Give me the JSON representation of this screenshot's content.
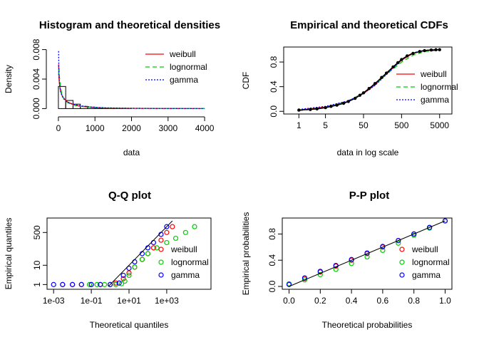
{
  "chart_data": [
    {
      "type": "histogram",
      "title": "Histogram and theoretical densities",
      "xlabel": "data",
      "ylabel": "Density",
      "xlim": [
        0,
        4000
      ],
      "ylim": [
        0,
        0.008
      ],
      "xticks": [
        "0",
        "1000",
        "2000",
        "3000",
        "4000"
      ],
      "xtick_values": [
        0,
        1000,
        2000,
        3000,
        4000
      ],
      "yticks": [
        "0.000",
        "0.004",
        "0.008"
      ],
      "ytick_values": [
        0,
        0.004,
        0.008
      ],
      "bins": [
        {
          "x0": 0,
          "x1": 200,
          "density": 0.003
        },
        {
          "x0": 200,
          "x1": 400,
          "density": 0.0011
        },
        {
          "x0": 400,
          "x1": 600,
          "density": 0.0006
        },
        {
          "x0": 600,
          "x1": 800,
          "density": 0.0003
        },
        {
          "x0": 800,
          "x1": 1000,
          "density": 0.0002
        },
        {
          "x0": 1000,
          "x1": 1200,
          "density": 0.00012
        },
        {
          "x0": 1200,
          "x1": 1400,
          "density": 8e-05
        },
        {
          "x0": 1400,
          "x1": 1600,
          "density": 5e-05
        },
        {
          "x0": 1600,
          "x1": 1800,
          "density": 3e-05
        },
        {
          "x0": 1800,
          "x1": 2000,
          "density": 2e-05
        }
      ],
      "series": [
        {
          "name": "weibull",
          "color": "#ff0000",
          "dash": "",
          "x": [
            5,
            15,
            30,
            60,
            100,
            150,
            250,
            400,
            600,
            900,
            1300,
            2000,
            3000,
            4000
          ],
          "y": [
            0.006,
            0.0042,
            0.0032,
            0.0024,
            0.0018,
            0.0014,
            0.0009,
            0.00055,
            0.00032,
            0.00016,
            8e-05,
            3e-05,
            1e-05,
            3e-06
          ]
        },
        {
          "name": "lognormal",
          "color": "#00cd00",
          "dash": "6,4",
          "x": [
            5,
            15,
            30,
            60,
            100,
            150,
            250,
            400,
            600,
            900,
            1300,
            2000,
            3000,
            4000
          ],
          "y": [
            0.0045,
            0.0055,
            0.0042,
            0.0028,
            0.0019,
            0.0013,
            0.0008,
            0.00048,
            0.0003,
            0.00018,
            0.0001,
            5e-05,
            2e-05,
            1e-05
          ]
        },
        {
          "name": "gamma",
          "color": "#0000ff",
          "dash": "2,2",
          "x": [
            5,
            15,
            30,
            60,
            100,
            150,
            250,
            400,
            600,
            900,
            1300,
            2000,
            3000,
            4000
          ],
          "y": [
            0.0078,
            0.0048,
            0.0033,
            0.0023,
            0.0017,
            0.0013,
            0.0009,
            0.0006,
            0.00038,
            0.0002,
            0.0001,
            4e-05,
            1e-05,
            3e-06
          ]
        }
      ],
      "legend_position": "top-right"
    },
    {
      "type": "line",
      "title": "Empirical and theoretical CDFs",
      "xlabel": "data in log scale",
      "ylabel": "CDF",
      "xscale": "log",
      "xlim": [
        0.6,
        7000
      ],
      "ylim": [
        0,
        1
      ],
      "xticks": [
        "1",
        "5",
        "50",
        "500",
        "5000"
      ],
      "xtick_values": [
        1,
        5,
        50,
        500,
        5000
      ],
      "yticks": [
        "0.0",
        "0.4",
        "0.8"
      ],
      "ytick_values": [
        0,
        0.4,
        0.8
      ],
      "empirical": {
        "x": [
          1,
          2,
          3,
          5,
          7,
          10,
          15,
          20,
          30,
          40,
          50,
          70,
          100,
          150,
          200,
          300,
          400,
          500,
          700,
          1000,
          1500,
          2000,
          3000,
          4000,
          5000
        ],
        "y": [
          0.02,
          0.03,
          0.04,
          0.06,
          0.08,
          0.1,
          0.13,
          0.16,
          0.21,
          0.26,
          0.3,
          0.37,
          0.45,
          0.55,
          0.62,
          0.72,
          0.79,
          0.84,
          0.9,
          0.94,
          0.97,
          0.985,
          0.995,
          1.0,
          1.0
        ]
      },
      "series": [
        {
          "name": "weibull",
          "color": "#ff0000",
          "dash": "",
          "x": [
            1,
            5,
            20,
            50,
            100,
            200,
            500,
            1000,
            2000,
            5000
          ],
          "y": [
            0.02,
            0.07,
            0.16,
            0.29,
            0.43,
            0.61,
            0.83,
            0.94,
            0.99,
            1.0
          ]
        },
        {
          "name": "lognormal",
          "color": "#00cd00",
          "dash": "6,4",
          "x": [
            1,
            5,
            20,
            50,
            100,
            200,
            500,
            1000,
            2000,
            5000
          ],
          "y": [
            0.01,
            0.06,
            0.17,
            0.3,
            0.44,
            0.6,
            0.8,
            0.91,
            0.97,
            0.995
          ]
        },
        {
          "name": "gamma",
          "color": "#0000ff",
          "dash": "2,2",
          "x": [
            1,
            5,
            20,
            50,
            100,
            200,
            500,
            1000,
            2000,
            5000
          ],
          "y": [
            0.03,
            0.08,
            0.17,
            0.29,
            0.42,
            0.6,
            0.84,
            0.95,
            0.99,
            1.0
          ]
        }
      ],
      "legend_position": "bottom-right"
    },
    {
      "type": "scatter",
      "title": "Q-Q plot",
      "xlabel": "Theoretical quantiles",
      "ylabel": "Empirical quantiles",
      "xscale": "log",
      "yscale": "log",
      "xlim": [
        0.001,
        100000
      ],
      "ylim": [
        0.8,
        2000
      ],
      "xticks": [
        "1e-03",
        "1e-01",
        "1e+01",
        "1e+03"
      ],
      "xtick_values": [
        0.001,
        0.1,
        10,
        1000
      ],
      "yticks": [
        "1",
        "10",
        "500"
      ],
      "ytick_values": [
        1,
        10,
        500
      ],
      "series": [
        {
          "name": "weibull",
          "color": "#ff0000",
          "marker": "circle",
          "x": [
            0.003,
            0.01,
            0.03,
            0.1,
            0.3,
            1,
            2,
            5,
            10,
            20,
            50,
            100,
            200,
            500,
            1000,
            2000
          ],
          "y": [
            1,
            1,
            1,
            1,
            1,
            1,
            1.2,
            2,
            4,
            8,
            20,
            40,
            80,
            200,
            500,
            1000
          ]
        },
        {
          "name": "lognormal",
          "color": "#00cd00",
          "marker": "circle",
          "x": [
            0.08,
            0.2,
            0.5,
            1,
            2,
            4,
            6,
            10,
            20,
            50,
            100,
            300,
            1000,
            3000,
            10000,
            30000
          ],
          "y": [
            1,
            1,
            1,
            1,
            1,
            1.1,
            1.5,
            3,
            8,
            20,
            40,
            80,
            150,
            250,
            500,
            1000
          ]
        },
        {
          "name": "gamma",
          "color": "#0000ff",
          "marker": "circle",
          "x": [
            0.001,
            0.003,
            0.01,
            0.03,
            0.1,
            0.3,
            1,
            3,
            5,
            10,
            20,
            50,
            100,
            200,
            500,
            1000
          ],
          "y": [
            1,
            1,
            1,
            1,
            1,
            1,
            1,
            1.2,
            3,
            7,
            15,
            40,
            80,
            150,
            400,
            1000
          ]
        }
      ],
      "legend_position": "bottom-right"
    },
    {
      "type": "scatter",
      "title": "P-P plot",
      "xlabel": "Theoretical probabilities",
      "ylabel": "Empirical probabilities",
      "xlim": [
        0,
        1
      ],
      "ylim": [
        0,
        1
      ],
      "xticks": [
        "0.0",
        "0.2",
        "0.4",
        "0.6",
        "0.8",
        "1.0"
      ],
      "xtick_values": [
        0,
        0.2,
        0.4,
        0.6,
        0.8,
        1.0
      ],
      "yticks": [
        "0.0",
        "0.4",
        "0.8"
      ],
      "ytick_values": [
        0,
        0.4,
        0.8
      ],
      "series": [
        {
          "name": "weibull",
          "color": "#ff0000",
          "marker": "circle",
          "x": [
            0.0,
            0.1,
            0.2,
            0.3,
            0.4,
            0.5,
            0.6,
            0.7,
            0.8,
            0.9,
            1.0
          ],
          "y": [
            0.03,
            0.12,
            0.22,
            0.31,
            0.4,
            0.5,
            0.6,
            0.7,
            0.8,
            0.9,
            1.0
          ]
        },
        {
          "name": "lognormal",
          "color": "#00cd00",
          "marker": "circle",
          "x": [
            0.0,
            0.1,
            0.2,
            0.3,
            0.4,
            0.5,
            0.6,
            0.7,
            0.8,
            0.9,
            1.0
          ],
          "y": [
            0.04,
            0.1,
            0.18,
            0.26,
            0.35,
            0.45,
            0.55,
            0.66,
            0.78,
            0.89,
            1.0
          ]
        },
        {
          "name": "gamma",
          "color": "#0000ff",
          "marker": "circle",
          "x": [
            0.0,
            0.1,
            0.2,
            0.3,
            0.4,
            0.5,
            0.6,
            0.7,
            0.8,
            0.9,
            1.0
          ],
          "y": [
            0.03,
            0.13,
            0.23,
            0.32,
            0.41,
            0.51,
            0.61,
            0.7,
            0.8,
            0.9,
            1.0
          ]
        }
      ],
      "legend_position": "bottom-right"
    }
  ]
}
